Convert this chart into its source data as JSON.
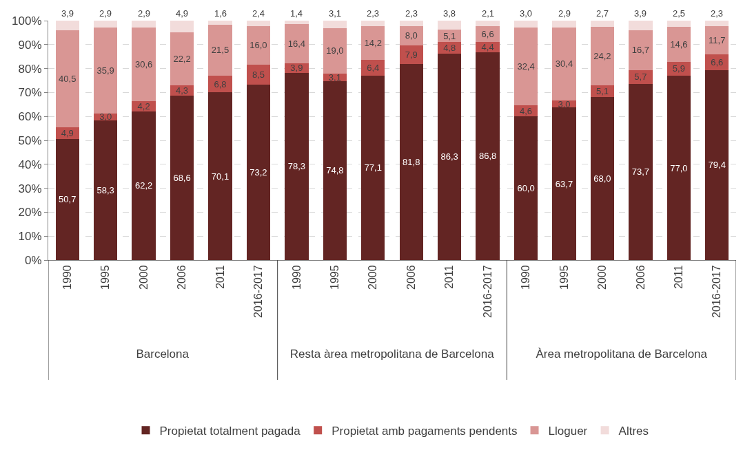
{
  "chart_data": {
    "type": "bar",
    "stacked": true,
    "categories": [
      "1990",
      "1995",
      "2000",
      "2006",
      "2011",
      "2016-2017",
      "1990",
      "1995",
      "2000",
      "2006",
      "2011",
      "2016-2017",
      "1990",
      "1995",
      "2000",
      "2006",
      "2011",
      "2016-2017"
    ],
    "series": [
      {
        "name": "Propietat totalment pagada",
        "color": "#632523",
        "values": [
          50.7,
          58.3,
          62.2,
          68.6,
          70.1,
          73.2,
          78.3,
          74.8,
          77.1,
          81.8,
          86.3,
          86.8,
          60.0,
          63.7,
          68.0,
          73.7,
          77.0,
          79.4
        ],
        "value_labels": [
          "50,7",
          "58,3",
          "62,2",
          "68,6",
          "70,1",
          "73,2",
          "78,3",
          "74,8",
          "77,1",
          "81,8",
          "86,3",
          "86,8",
          "60,0",
          "63,7",
          "68,0",
          "73,7",
          "77,0",
          "79,4"
        ]
      },
      {
        "name": "Propietat amb pagaments pendents",
        "color": "#c0504d",
        "values": [
          4.9,
          3.0,
          4.2,
          4.3,
          6.8,
          8.5,
          3.9,
          3.1,
          6.4,
          7.9,
          4.8,
          4.4,
          4.6,
          3.0,
          5.1,
          5.7,
          5.9,
          6.6
        ],
        "value_labels": [
          "4,9",
          "3,0",
          "4,2",
          "4,3",
          "6,8",
          "8,5",
          "3,9",
          "3,1",
          "6,4",
          "7,9",
          "4,8",
          "4,4",
          "4,6",
          "3,0",
          "5,1",
          "5,7",
          "5,9",
          "6,6"
        ]
      },
      {
        "name": "Lloguer",
        "color": "#d99694",
        "values": [
          40.5,
          35.9,
          30.6,
          22.2,
          21.5,
          16.0,
          16.4,
          19.0,
          14.2,
          8.0,
          5.1,
          6.6,
          32.4,
          30.4,
          24.2,
          16.7,
          14.6,
          11.7
        ],
        "value_labels": [
          "40,5",
          "35,9",
          "30,6",
          "22,2",
          "21,5",
          "16,0",
          "16,4",
          "19,0",
          "14,2",
          "8,0",
          "5,1",
          "6,6",
          "32,4",
          "30,4",
          "24,2",
          "16,7",
          "14,6",
          "11,7"
        ]
      },
      {
        "name": "Altres",
        "color": "#f2dcdb",
        "values": [
          3.9,
          2.9,
          2.9,
          4.9,
          1.6,
          2.4,
          1.4,
          3.1,
          2.3,
          2.3,
          3.8,
          2.1,
          3.0,
          2.9,
          2.7,
          3.9,
          2.5,
          2.3
        ],
        "value_labels": [
          "3,9",
          "2,9",
          "2,9",
          "4,9",
          "1,6",
          "2,4",
          "1,4",
          "3,1",
          "2,3",
          "2,3",
          "3,8",
          "2,1",
          "3,0",
          "2,9",
          "2,7",
          "3,9",
          "2,5",
          "2,3"
        ]
      }
    ],
    "annotations": [
      "Barcelona",
      "Resta àrea metropolitana de Barcelona",
      "Àrea metropolitana de Barcelona"
    ],
    "ylim": [
      0,
      100
    ],
    "yticks": [
      {
        "value": 0,
        "label": "0%"
      },
      {
        "value": 10,
        "label": "10%"
      },
      {
        "value": 20,
        "label": "20%"
      },
      {
        "value": 30,
        "label": "30%"
      },
      {
        "value": 40,
        "label": "40%"
      },
      {
        "value": 50,
        "label": "50%"
      },
      {
        "value": 60,
        "label": "60%"
      },
      {
        "value": 70,
        "label": "70%"
      },
      {
        "value": 80,
        "label": "80%"
      },
      {
        "value": 90,
        "label": "90%"
      },
      {
        "value": 100,
        "label": "100%"
      }
    ],
    "grid": "y",
    "legend": "bottom"
  }
}
